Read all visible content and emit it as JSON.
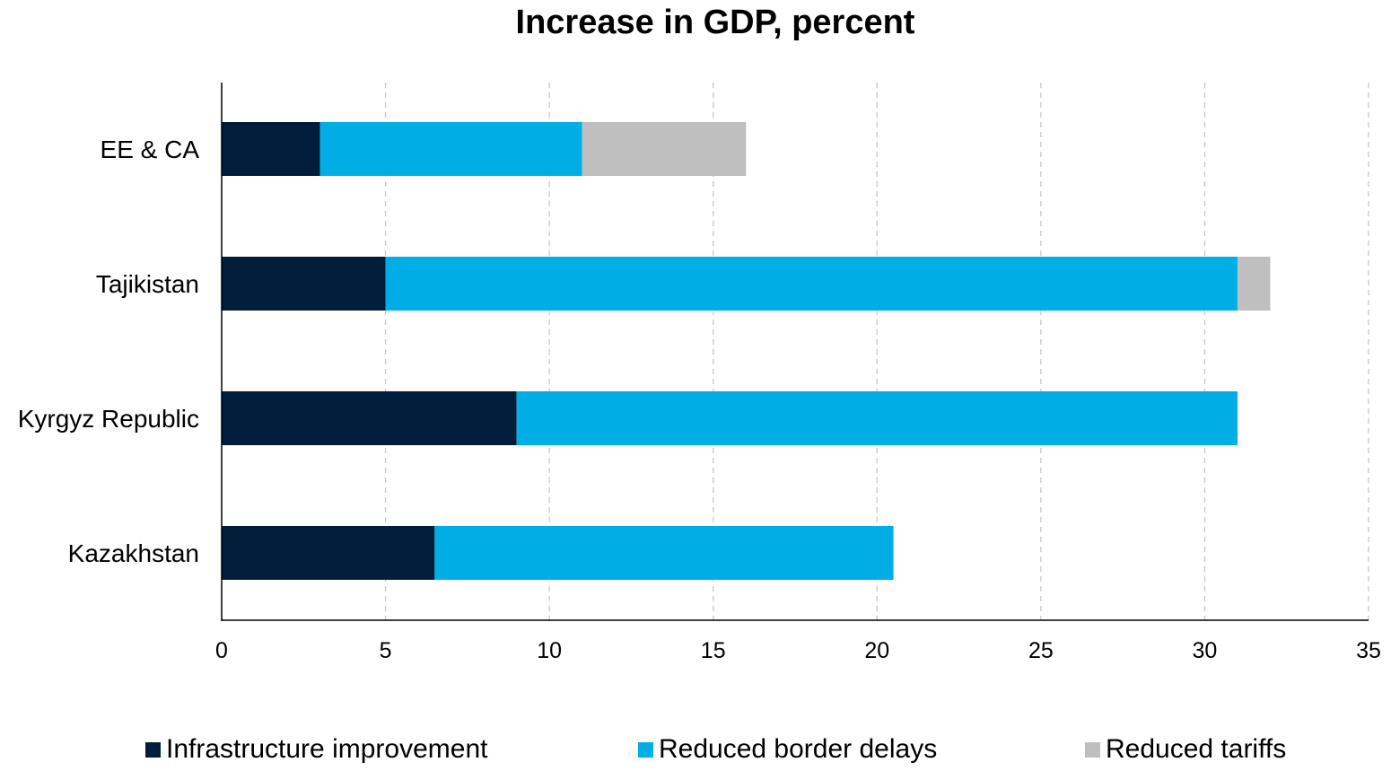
{
  "chart_data": {
    "type": "bar",
    "orientation": "horizontal",
    "stacked": true,
    "title": "Increase in GDP, percent",
    "categories": [
      "Kazakhstan",
      "Kyrgyz Republic",
      "Tajikistan",
      "EE & CA"
    ],
    "series": [
      {
        "name": "Infrastructure improvement",
        "color": "#001e3c",
        "values": [
          6.5,
          9,
          5,
          3
        ]
      },
      {
        "name": "Reduced border delays",
        "color": "#00ade4",
        "values": [
          14,
          22,
          26,
          8
        ]
      },
      {
        "name": "Reduced tariffs",
        "color": "#bfbfbf",
        "values": [
          0,
          0,
          1,
          5
        ]
      }
    ],
    "xlim": [
      0,
      35
    ],
    "xticks": [
      "0",
      "5",
      "10",
      "15",
      "20",
      "25",
      "30",
      "35"
    ],
    "grid": "vertical dashed",
    "legend_position": "bottom"
  }
}
